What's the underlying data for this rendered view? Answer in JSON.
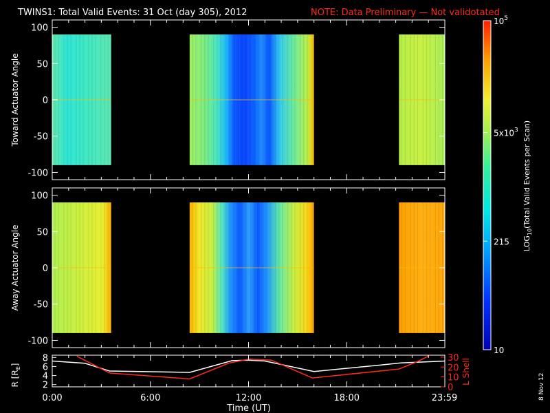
{
  "title": {
    "main": "TWINS1: Total Valid Events: 31 Oct (day 305), 2012",
    "note": "NOTE: Data Preliminary — Not validotated"
  },
  "colors": {
    "background": "#000000",
    "axis": "#ffffff",
    "note": "#ff2a1a",
    "r_line": "#ffffff",
    "lshell_line": "#ff2a1a"
  },
  "chart_data": [
    {
      "type": "heatmap",
      "name": "toward",
      "ylabel": "Toward Actuator Angle",
      "ylim": [
        -110,
        110
      ],
      "y_ticks": [
        100,
        50,
        0,
        -50,
        -100
      ],
      "x_range_hours": [
        0,
        24
      ],
      "angle_range": [
        -90,
        90
      ],
      "segments": [
        {
          "start": 0.0,
          "end": 3.6,
          "level": "cyan-green"
        },
        {
          "start": 8.4,
          "end": 16.0,
          "level": "green-blue-green"
        },
        {
          "start": 21.2,
          "end": 24.0,
          "level": "green-yellow"
        }
      ]
    },
    {
      "type": "heatmap",
      "name": "away",
      "ylabel": "Away Actuator Angle",
      "ylim": [
        -110,
        110
      ],
      "y_ticks": [
        100,
        50,
        0,
        -50,
        -100
      ],
      "x_range_hours": [
        0,
        24
      ],
      "angle_range": [
        -90,
        90
      ],
      "segments": [
        {
          "start": 0.0,
          "end": 3.6,
          "level": "green-yellow"
        },
        {
          "start": 8.4,
          "end": 16.0,
          "level": "yellow-blue-yellow"
        },
        {
          "start": 21.2,
          "end": 24.0,
          "level": "orange"
        }
      ]
    },
    {
      "type": "line",
      "name": "orbit",
      "ylabel_left": "R [R",
      "ylabel_left_sub": "E",
      "ylabel_left_end": "]",
      "ylabel_right": "L Shell",
      "y_left_ticks": [
        8,
        6,
        4,
        2
      ],
      "y_right_ticks": [
        30,
        20,
        10,
        0
      ],
      "ylim_left": [
        1.5,
        8.5
      ],
      "ylim_right": [
        0,
        32
      ],
      "series": [
        {
          "name": "R",
          "axis": "left",
          "x": [
            0.0,
            2.0,
            3.5,
            8.4,
            11.0,
            12.0,
            13.0,
            16.0,
            20.0,
            21.3,
            24.0
          ],
          "y": [
            7.2,
            6.7,
            5.0,
            4.7,
            7.3,
            7.4,
            7.2,
            4.9,
            6.3,
            6.8,
            7.2
          ]
        },
        {
          "name": "L Shell",
          "axis": "right",
          "x": [
            1.5,
            3.5,
            8.4,
            10.8,
            12.0,
            13.4,
            15.9,
            21.2,
            22.4,
            23.1
          ],
          "y": [
            31,
            14,
            8,
            24,
            28,
            27,
            9,
            18,
            26,
            32
          ]
        }
      ],
      "xlabel": "Time (UT)",
      "x_ticks": [
        {
          "hour": 0,
          "label": "0:00"
        },
        {
          "hour": 6,
          "label": "6:00"
        },
        {
          "hour": 12,
          "label": "12:00"
        },
        {
          "hour": 18,
          "label": "18:00"
        },
        {
          "hour": 23.98,
          "label": "23:59"
        }
      ]
    }
  ],
  "colorbar": {
    "label_prefix": "LOG",
    "label_sub": "10",
    "label_suffix": "(Total Valid Events per Scan)",
    "ticks": [
      {
        "pos": 1.0,
        "base": "10",
        "exp": "5"
      },
      {
        "pos": 0.66,
        "base": "5x10",
        "exp": "3"
      },
      {
        "pos": 0.33,
        "base": "215",
        "exp": ""
      },
      {
        "pos": 0.0,
        "base": "10",
        "exp": ""
      }
    ]
  },
  "datestamp": "8 Nov 12"
}
